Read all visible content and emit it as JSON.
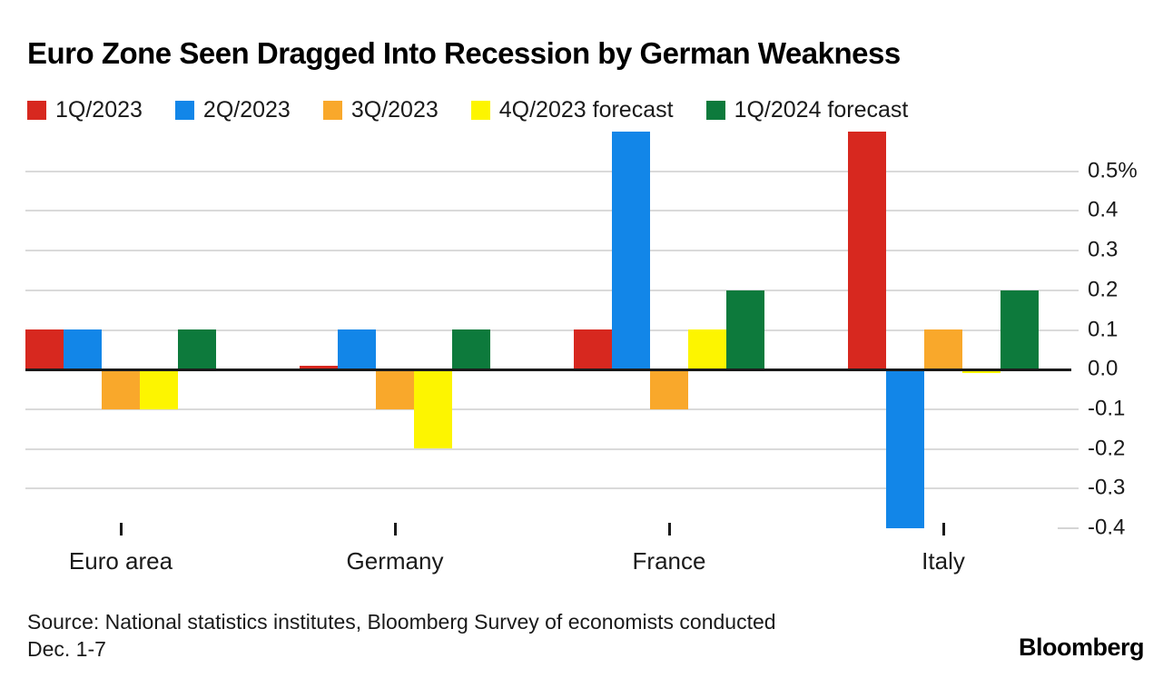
{
  "chart_data": {
    "type": "bar",
    "title": "Euro Zone Seen Dragged Into Recession by German Weakness",
    "categories": [
      "Euro area",
      "Germany",
      "France",
      "Italy"
    ],
    "series": [
      {
        "name": "1Q/2023",
        "color": "#d7281f",
        "values": [
          0.1,
          0.01,
          0.1,
          0.6
        ]
      },
      {
        "name": "2Q/2023",
        "color": "#1286e8",
        "values": [
          0.1,
          0.1,
          0.6,
          -0.4
        ]
      },
      {
        "name": "3Q/2023",
        "color": "#f9a82b",
        "values": [
          -0.1,
          -0.1,
          -0.1,
          0.1
        ]
      },
      {
        "name": "4Q/2023 forecast",
        "color": "#fdf500",
        "values": [
          -0.1,
          -0.2,
          0.1,
          -0.01
        ]
      },
      {
        "name": "1Q/2024 forecast",
        "color": "#0d7a3c",
        "values": [
          0.1,
          0.1,
          0.2,
          0.2
        ]
      }
    ],
    "ylabel": "%",
    "ylim": [
      -0.42,
      0.6
    ],
    "yticks": [
      {
        "value": 0.5,
        "label": "0.5%"
      },
      {
        "value": 0.4,
        "label": "0.4"
      },
      {
        "value": 0.3,
        "label": "0.3"
      },
      {
        "value": 0.2,
        "label": "0.2"
      },
      {
        "value": 0.1,
        "label": "0.1"
      },
      {
        "value": 0.0,
        "label": "0.0"
      },
      {
        "value": -0.1,
        "label": "-0.1"
      },
      {
        "value": -0.2,
        "label": "-0.2"
      },
      {
        "value": -0.3,
        "label": "-0.3"
      },
      {
        "value": -0.4,
        "label": "-0.4"
      }
    ],
    "grid": "horizontal",
    "legend_position": "top-left",
    "axis_side": "right"
  },
  "footer": {
    "source_line1": "Source: National statistics institutes, Bloomberg Survey of economists conducted",
    "source_line2": "Dec. 1-7",
    "logo": "Bloomberg"
  },
  "colors": {
    "axis_line": "#1a1a1a",
    "gridline": "#dadada",
    "text": "#1a1a1a",
    "background": "#ffffff"
  }
}
